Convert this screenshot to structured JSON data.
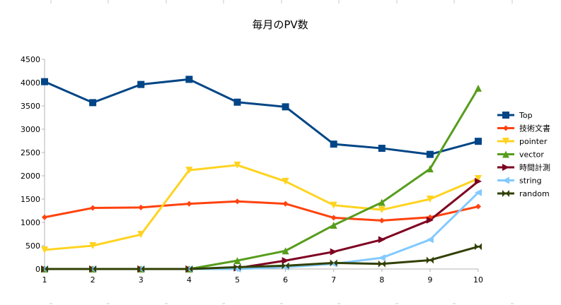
{
  "chart_data": {
    "type": "line",
    "title": "毎月のPV数",
    "xlabel": "",
    "ylabel": "",
    "x": [
      1,
      2,
      3,
      4,
      5,
      6,
      7,
      8,
      9,
      10
    ],
    "x_tick_labels": [
      "1",
      "2",
      "3",
      "4",
      "5",
      "6",
      "7",
      "8",
      "9",
      "10"
    ],
    "ylim": [
      0,
      4500
    ],
    "y_ticks": [
      0,
      500,
      1000,
      1500,
      2000,
      2500,
      3000,
      3500,
      4000,
      4500
    ],
    "y_tick_labels": [
      "0",
      "500",
      "1000",
      "1500",
      "2000",
      "2500",
      "3000",
      "3500",
      "4000",
      "4500"
    ],
    "grid": "off",
    "legend_position": "right",
    "series": [
      {
        "name": "Top",
        "color": "#004586",
        "marker": "square",
        "values": [
          4020,
          3570,
          3960,
          4070,
          3580,
          3480,
          2680,
          2590,
          2460,
          2740
        ]
      },
      {
        "name": "技術文書",
        "color": "#ff420e",
        "marker": "diamond",
        "values": [
          1110,
          1310,
          1320,
          1400,
          1450,
          1400,
          1100,
          1040,
          1110,
          1340
        ]
      },
      {
        "name": "pointer",
        "color": "#ffd320",
        "marker": "triangle-down",
        "values": [
          410,
          500,
          740,
          2120,
          2230,
          1880,
          1370,
          1270,
          1500,
          1940
        ]
      },
      {
        "name": "vector",
        "color": "#579d1c",
        "marker": "triangle-up",
        "values": [
          0,
          0,
          0,
          0,
          180,
          390,
          940,
          1430,
          2150,
          3880
        ]
      },
      {
        "name": "時間計測",
        "color": "#7e0021",
        "marker": "triangle-right",
        "values": [
          0,
          0,
          0,
          0,
          20,
          180,
          370,
          630,
          1050,
          1880
        ]
      },
      {
        "name": "string",
        "color": "#83caff",
        "marker": "triangle-left",
        "values": [
          0,
          0,
          0,
          0,
          0,
          40,
          110,
          240,
          630,
          1640
        ]
      },
      {
        "name": "random",
        "color": "#314004",
        "marker": "bowtie",
        "values": [
          0,
          0,
          0,
          0,
          40,
          70,
          130,
          110,
          190,
          480
        ]
      }
    ]
  }
}
